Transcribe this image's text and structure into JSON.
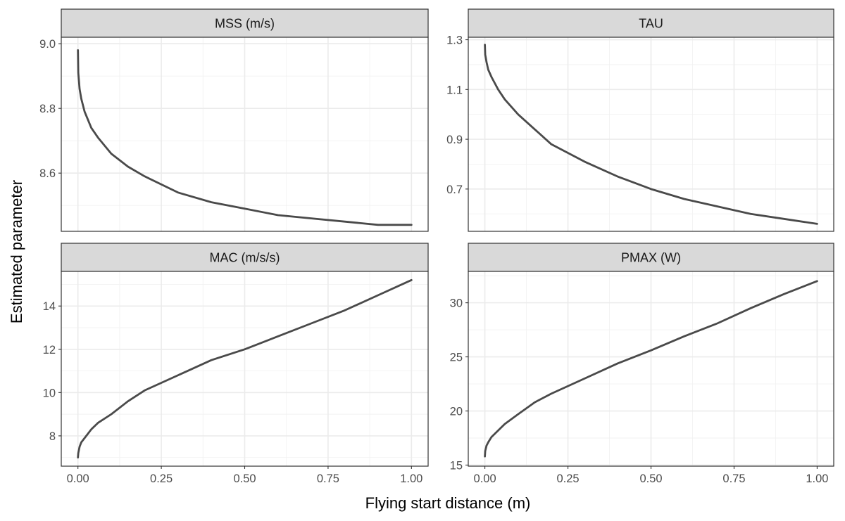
{
  "chart_data": {
    "type": "line",
    "xlabel": "Flying start distance (m)",
    "ylabel": "Estimated parameter",
    "grid": true,
    "facets": [
      {
        "title": "MSS (m/s)",
        "xlim": [
          -0.05,
          1.05
        ],
        "ylim": [
          8.42,
          9.02
        ],
        "xticks": [
          0.0,
          0.25,
          0.5,
          0.75,
          1.0
        ],
        "xtick_labels": [
          "0.00",
          "0.25",
          "0.50",
          "0.75",
          "1.00"
        ],
        "yticks": [
          8.6,
          8.8,
          9.0
        ],
        "ytick_labels": [
          "8.6",
          "8.8",
          "9.0"
        ],
        "x": [
          0.0,
          0.001,
          0.005,
          0.01,
          0.02,
          0.04,
          0.06,
          0.1,
          0.15,
          0.2,
          0.3,
          0.4,
          0.5,
          0.6,
          0.7,
          0.8,
          0.9,
          1.0
        ],
        "y": [
          8.98,
          8.91,
          8.86,
          8.83,
          8.79,
          8.74,
          8.71,
          8.66,
          8.62,
          8.59,
          8.54,
          8.51,
          8.49,
          8.47,
          8.46,
          8.45,
          8.44,
          8.44
        ]
      },
      {
        "title": "TAU",
        "xlim": [
          -0.05,
          1.05
        ],
        "ylim": [
          0.53,
          1.31
        ],
        "xticks": [
          0.0,
          0.25,
          0.5,
          0.75,
          1.0
        ],
        "xtick_labels": [
          "0.00",
          "0.25",
          "0.50",
          "0.75",
          "1.00"
        ],
        "yticks": [
          0.7,
          0.9,
          1.1,
          1.3
        ],
        "ytick_labels": [
          "0.7",
          "0.9",
          "1.1",
          "1.3"
        ],
        "x": [
          0.0,
          0.001,
          0.005,
          0.01,
          0.02,
          0.04,
          0.06,
          0.1,
          0.15,
          0.2,
          0.3,
          0.4,
          0.5,
          0.6,
          0.7,
          0.8,
          0.9,
          1.0
        ],
        "y": [
          1.28,
          1.24,
          1.21,
          1.18,
          1.15,
          1.1,
          1.06,
          1.0,
          0.94,
          0.88,
          0.81,
          0.75,
          0.7,
          0.66,
          0.63,
          0.6,
          0.58,
          0.56
        ]
      },
      {
        "title": "MAC (m/s/s)",
        "xlim": [
          -0.05,
          1.05
        ],
        "ylim": [
          6.6,
          15.6
        ],
        "xticks": [
          0.0,
          0.25,
          0.5,
          0.75,
          1.0
        ],
        "xtick_labels": [
          "0.00",
          "0.25",
          "0.50",
          "0.75",
          "1.00"
        ],
        "yticks": [
          8,
          10,
          12,
          14
        ],
        "ytick_labels": [
          "8",
          "10",
          "12",
          "14"
        ],
        "x": [
          0.0,
          0.001,
          0.005,
          0.01,
          0.02,
          0.04,
          0.06,
          0.1,
          0.15,
          0.2,
          0.3,
          0.4,
          0.5,
          0.6,
          0.7,
          0.8,
          0.9,
          1.0
        ],
        "y": [
          7.0,
          7.2,
          7.5,
          7.7,
          7.9,
          8.3,
          8.6,
          9.0,
          9.6,
          10.1,
          10.8,
          11.5,
          12.0,
          12.6,
          13.2,
          13.8,
          14.5,
          15.2
        ]
      },
      {
        "title": "PMAX (W)",
        "xlim": [
          -0.05,
          1.05
        ],
        "ylim": [
          14.9,
          32.9
        ],
        "xticks": [
          0.0,
          0.25,
          0.5,
          0.75,
          1.0
        ],
        "xtick_labels": [
          "0.00",
          "0.25",
          "0.50",
          "0.75",
          "1.00"
        ],
        "yticks": [
          15,
          20,
          25,
          30
        ],
        "ytick_labels": [
          "15",
          "20",
          "25",
          "30"
        ],
        "x": [
          0.0,
          0.001,
          0.005,
          0.01,
          0.02,
          0.04,
          0.06,
          0.1,
          0.15,
          0.2,
          0.3,
          0.4,
          0.5,
          0.6,
          0.7,
          0.8,
          0.9,
          1.0
        ],
        "y": [
          15.8,
          16.3,
          16.8,
          17.1,
          17.6,
          18.2,
          18.8,
          19.7,
          20.8,
          21.6,
          23.0,
          24.4,
          25.6,
          26.9,
          28.1,
          29.5,
          30.8,
          32.0
        ]
      }
    ]
  }
}
